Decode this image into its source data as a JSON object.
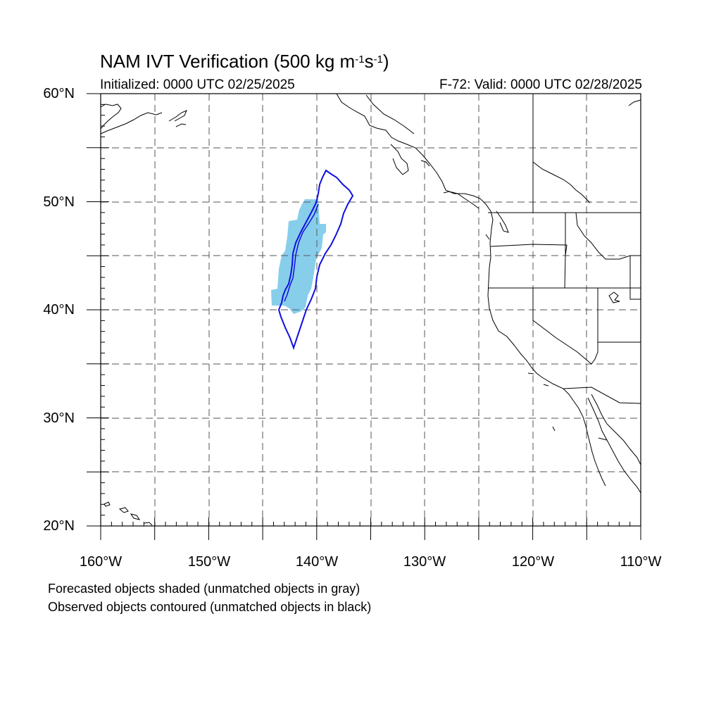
{
  "header": {
    "title_main": "NAM IVT Verification (500 kg m",
    "title_exp1": "-1",
    "title_mid": "s",
    "title_exp2": "-1",
    "title_end": ")",
    "initialized": "Initialized: 0000 UTC 02/25/2025",
    "valid": "F-72: Valid: 0000 UTC 02/28/2025"
  },
  "axes": {
    "lat_labels": [
      "60°N",
      "50°N",
      "40°N",
      "30°N",
      "20°N"
    ],
    "lon_labels": [
      "160°W",
      "150°W",
      "140°W",
      "130°W",
      "120°W",
      "110°W"
    ],
    "lat_range": [
      20,
      60
    ],
    "lon_range": [
      -160,
      -110
    ],
    "gridlines": "dashed"
  },
  "legend": {
    "forecast_note": "Forecasted objects shaded (unmatched objects in gray)",
    "observed_note": "Observed objects contoured (unmatched objects in black)"
  },
  "colors": {
    "forecast_fill": "#87ceeb",
    "observed_contour": "#1010e0",
    "coastline": "#000000",
    "grid": "#555555"
  }
}
